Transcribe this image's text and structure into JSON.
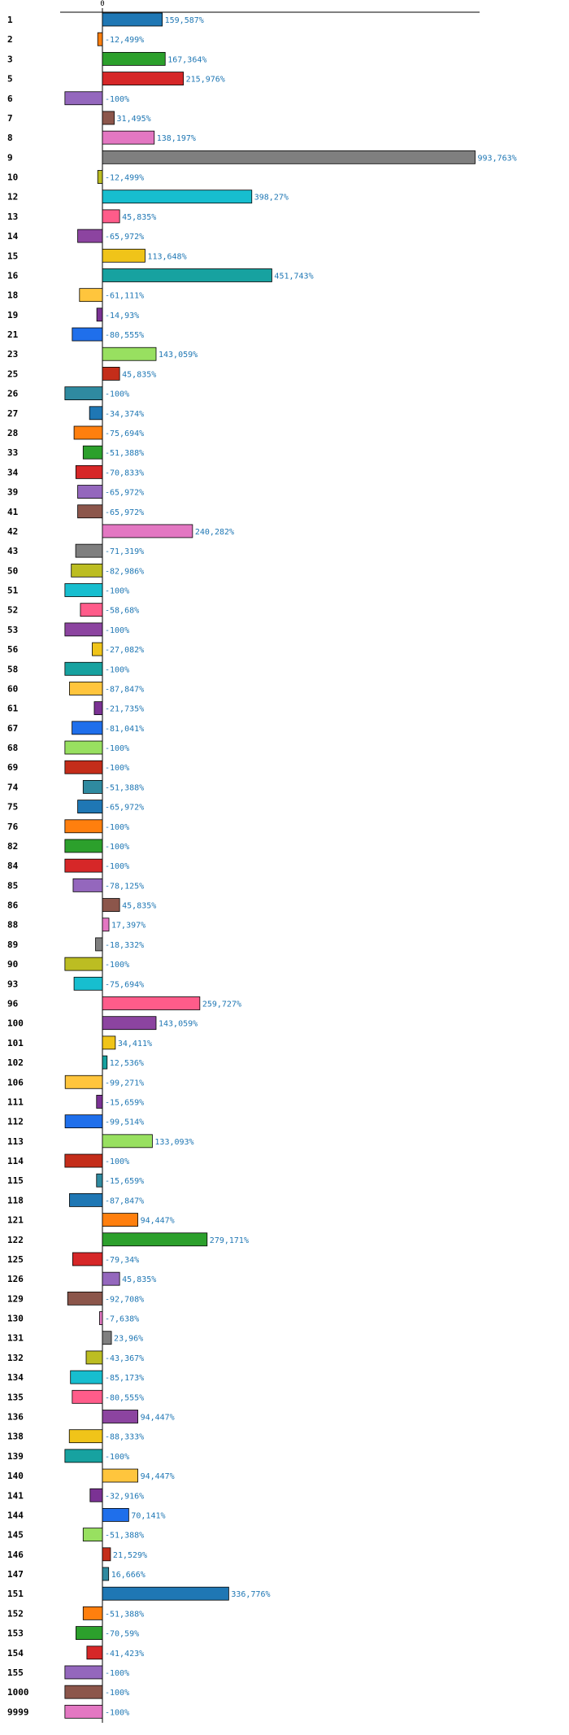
{
  "chart_data": {
    "type": "bar",
    "orientation": "horizontal",
    "zero_tick_label": "0",
    "highlight_category": "145",
    "highlight_color": "#ff0000",
    "value_label_color": "#1f77b4",
    "palette": [
      "#1f77b4",
      "#ff7f0e",
      "#2ca02c",
      "#d62728",
      "#9467bd",
      "#8c564b",
      "#e377c2",
      "#7f7f7f",
      "#bcbd22",
      "#17becf",
      "#ff5c8a",
      "#8c44a0",
      "#f0c419",
      "#17a2a0",
      "#ffc53d",
      "#7b3294",
      "#1f6feb",
      "#98e060",
      "#c42d1a",
      "#2f8aa0"
    ],
    "categories": [
      "1",
      "2",
      "3",
      "5",
      "6",
      "7",
      "8",
      "9",
      "10",
      "12",
      "13",
      "14",
      "15",
      "16",
      "18",
      "19",
      "21",
      "23",
      "25",
      "26",
      "27",
      "28",
      "33",
      "34",
      "39",
      "41",
      "42",
      "43",
      "50",
      "51",
      "52",
      "53",
      "56",
      "58",
      "60",
      "61",
      "67",
      "68",
      "69",
      "74",
      "75",
      "76",
      "82",
      "84",
      "85",
      "86",
      "88",
      "89",
      "90",
      "93",
      "96",
      "100",
      "101",
      "102",
      "106",
      "111",
      "112",
      "113",
      "114",
      "115",
      "118",
      "121",
      "122",
      "125",
      "126",
      "129",
      "130",
      "131",
      "132",
      "134",
      "135",
      "136",
      "138",
      "139",
      "140",
      "141",
      "144",
      "145",
      "146",
      "147",
      "151",
      "152",
      "153",
      "154",
      "155",
      "1000",
      "9999"
    ],
    "values": [
      159.587,
      -12.499,
      167.364,
      215.976,
      -100,
      31.495,
      138.197,
      993.763,
      -12.499,
      398.27,
      45.835,
      -65.972,
      113.648,
      451.743,
      -61.111,
      -14.93,
      -80.555,
      143.059,
      45.835,
      -100,
      -34.374,
      -75.694,
      -51.388,
      -70.833,
      -65.972,
      -65.972,
      240.282,
      -71.319,
      -82.986,
      -100,
      -58.68,
      -100,
      -27.082,
      -100,
      -87.847,
      -21.735,
      -81.041,
      -100,
      -100,
      -51.388,
      -65.972,
      -100,
      -100,
      -100,
      -78.125,
      45.835,
      17.397,
      -18.332,
      -100,
      -75.694,
      259.727,
      143.059,
      34.411,
      12.536,
      -99.271,
      -15.659,
      -99.514,
      133.093,
      -100,
      -15.659,
      -87.847,
      94.447,
      279.171,
      -79.34,
      45.835,
      -92.708,
      -7.638,
      23.96,
      -43.367,
      -85.173,
      -80.555,
      94.447,
      -88.333,
      -100,
      94.447,
      -32.916,
      70.141,
      -51.388,
      21.529,
      16.666,
      336.776,
      -51.388,
      -70.59,
      -41.423,
      -100,
      -100,
      -100
    ],
    "value_labels": [
      "159,587%",
      "-12,499%",
      "167,364%",
      "215,976%",
      "-100%",
      "31,495%",
      "138,197%",
      "993,763%",
      "-12,499%",
      "398,27%",
      "45,835%",
      "-65,972%",
      "113,648%",
      "451,743%",
      "-61,111%",
      "-14,93%",
      "-80,555%",
      "143,059%",
      "45,835%",
      "-100%",
      "-34,374%",
      "-75,694%",
      "-51,388%",
      "-70,833%",
      "-65,972%",
      "-65,972%",
      "240,282%",
      "-71,319%",
      "-82,986%",
      "-100%",
      "-58,68%",
      "-100%",
      "-27,082%",
      "-100%",
      "-87,847%",
      "-21,735%",
      "-81,041%",
      "-100%",
      "-100%",
      "-51,388%",
      "-65,972%",
      "-100%",
      "-100%",
      "-100%",
      "-78,125%",
      "45,835%",
      "17,397%",
      "-18,332%",
      "-100%",
      "-75,694%",
      "259,727%",
      "143,059%",
      "34,411%",
      "12,536%",
      "-99,271%",
      "-15,659%",
      "-99,514%",
      "133,093%",
      "-100%",
      "-15,659%",
      "-87,847%",
      "94,447%",
      "279,171%",
      "-79,34%",
      "45,835%",
      "-92,708%",
      "-7,638%",
      "23,96%",
      "-43,367%",
      "-85,173%",
      "-80,555%",
      "94,447%",
      "-88,333%",
      "-100%",
      "94,447%",
      "-32,916%",
      "70,141%",
      "-51,388%",
      "21,529%",
      "16,666%",
      "336,776%",
      "-51,388%",
      "-70,59%",
      "-41,423%",
      "-100%",
      "-100%",
      "-100%"
    ]
  }
}
